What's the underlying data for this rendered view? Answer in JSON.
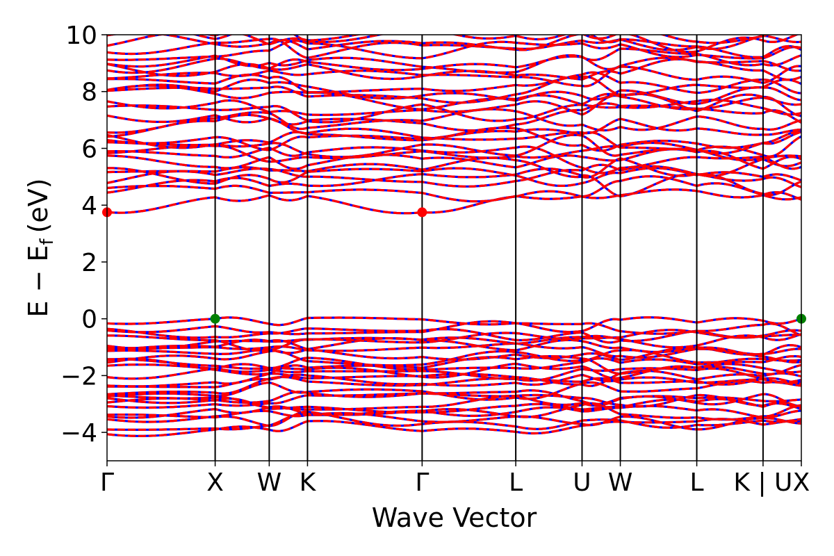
{
  "chart_data": {
    "type": "line",
    "xlabel": "Wave Vector",
    "ylabel": "E − E",
    "ylabel_sub": "f",
    "ylabel_unit": "(eV)",
    "ylim": [
      -5,
      10
    ],
    "yticks": [
      {
        "value": -4,
        "label": "−4"
      },
      {
        "value": -2,
        "label": "−2"
      },
      {
        "value": 0,
        "label": "0"
      },
      {
        "value": 2,
        "label": "2"
      },
      {
        "value": 4,
        "label": "4"
      },
      {
        "value": 6,
        "label": "6"
      },
      {
        "value": 8,
        "label": "8"
      },
      {
        "value": 10,
        "label": "10"
      }
    ],
    "kpath": [
      {
        "label": "Γ",
        "x": 0.0
      },
      {
        "label": "X",
        "x": 1.0
      },
      {
        "label": "W",
        "x": 1.5
      },
      {
        "label": "K",
        "x": 1.854
      },
      {
        "label": "Γ",
        "x": 2.914
      },
      {
        "label": "L",
        "x": 3.78
      },
      {
        "label": "U",
        "x": 4.393
      },
      {
        "label": "W",
        "x": 4.747
      },
      {
        "label": "L",
        "x": 5.454
      },
      {
        "label": "K | U",
        "x": 6.067
      },
      {
        "label": "X",
        "x": 6.421
      }
    ],
    "xlim": [
      0,
      6.421
    ],
    "series": [
      {
        "color": "#0000ff",
        "style": "solid"
      },
      {
        "color": "#ff0000",
        "style": "dashed"
      }
    ],
    "conduction_band_minimum": [
      {
        "x": 0.0,
        "y": 3.75
      },
      {
        "x": 2.914,
        "y": 3.75
      }
    ],
    "valence_band_maximum": [
      {
        "x": 1.0,
        "y": 0.0
      },
      {
        "x": 6.421,
        "y": 0.0
      }
    ],
    "cbm_color": "#ff0000",
    "vbm_color": "#008000",
    "valence_band_range": [
      -3.85,
      0.0
    ],
    "conduction_band_range": [
      3.75,
      10.0
    ],
    "band_gap": 3.75
  }
}
